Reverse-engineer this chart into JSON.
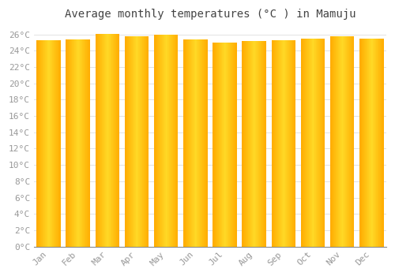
{
  "title": "Average monthly temperatures (°C ) in Mamuju",
  "months": [
    "Jan",
    "Feb",
    "Mar",
    "Apr",
    "May",
    "Jun",
    "Jul",
    "Aug",
    "Sep",
    "Oct",
    "Nov",
    "Dec"
  ],
  "temperatures": [
    25.3,
    25.4,
    26.1,
    25.8,
    26.0,
    25.4,
    25.0,
    25.2,
    25.3,
    25.5,
    25.8,
    25.5
  ],
  "bar_color": "#FFAA00",
  "bar_edge_color": "#FF9900",
  "background_color": "#FFFFFF",
  "plot_bg_color": "#FFFFFF",
  "grid_color": "#DDDDDD",
  "ylim": [
    0,
    27
  ],
  "yticks": [
    0,
    2,
    4,
    6,
    8,
    10,
    12,
    14,
    16,
    18,
    20,
    22,
    24,
    26
  ],
  "title_fontsize": 10,
  "tick_fontsize": 8,
  "tick_color": "#999999",
  "title_color": "#444444"
}
